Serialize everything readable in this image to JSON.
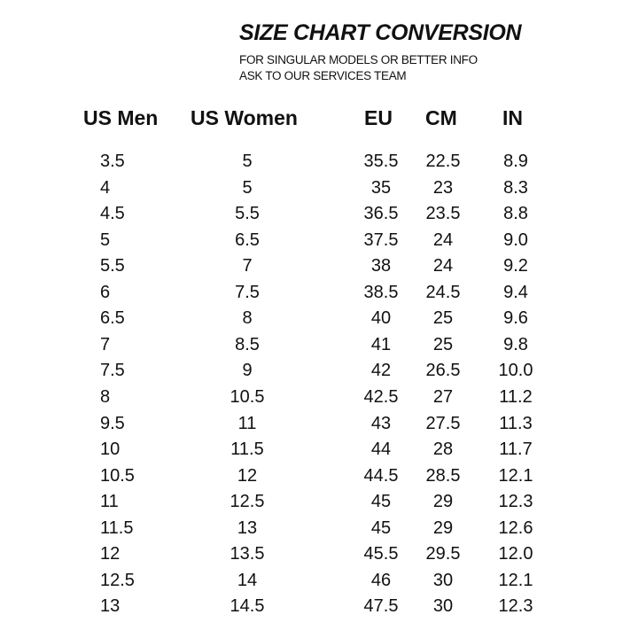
{
  "header": {
    "title": "SIZE CHART CONVERSION",
    "subtitle_lines": [
      "FOR SINGULAR MODELS OR BETTER INFO",
      "ASK TO OUR SERVICES TEAM"
    ]
  },
  "table": {
    "columns": [
      "US Men",
      "US Women",
      "EU",
      "CM",
      "IN"
    ],
    "rows": [
      [
        "3.5",
        "5",
        "35.5",
        "22.5",
        "8.9"
      ],
      [
        "4",
        "5",
        "35",
        "23",
        "8.3"
      ],
      [
        "4.5",
        "5.5",
        "36.5",
        "23.5",
        "8.8"
      ],
      [
        "5",
        "6.5",
        "37.5",
        "24",
        "9.0"
      ],
      [
        "5.5",
        "7",
        "38",
        "24",
        "9.2"
      ],
      [
        "6",
        "7.5",
        "38.5",
        "24.5",
        "9.4"
      ],
      [
        "6.5",
        "8",
        "40",
        "25",
        "9.6"
      ],
      [
        "7",
        "8.5",
        "41",
        "25",
        "9.8"
      ],
      [
        "7.5",
        "9",
        "42",
        "26.5",
        "10.0"
      ],
      [
        "8",
        "10.5",
        "42.5",
        "27",
        "11.2"
      ],
      [
        "9.5",
        "11",
        "43",
        "27.5",
        "11.3"
      ],
      [
        "10",
        "11.5",
        "44",
        "28",
        "11.7"
      ],
      [
        "10.5",
        "12",
        "44.5",
        "28.5",
        "12.1"
      ],
      [
        "11",
        "12.5",
        "45",
        "29",
        "12.3"
      ],
      [
        "11.5",
        "13",
        "45",
        "29",
        "12.6"
      ],
      [
        "12",
        "13.5",
        "45.5",
        "29.5",
        "12.0"
      ],
      [
        "12.5",
        "14",
        "46",
        "30",
        "12.1"
      ],
      [
        "13",
        "14.5",
        "47.5",
        "30",
        "12.3"
      ]
    ]
  }
}
